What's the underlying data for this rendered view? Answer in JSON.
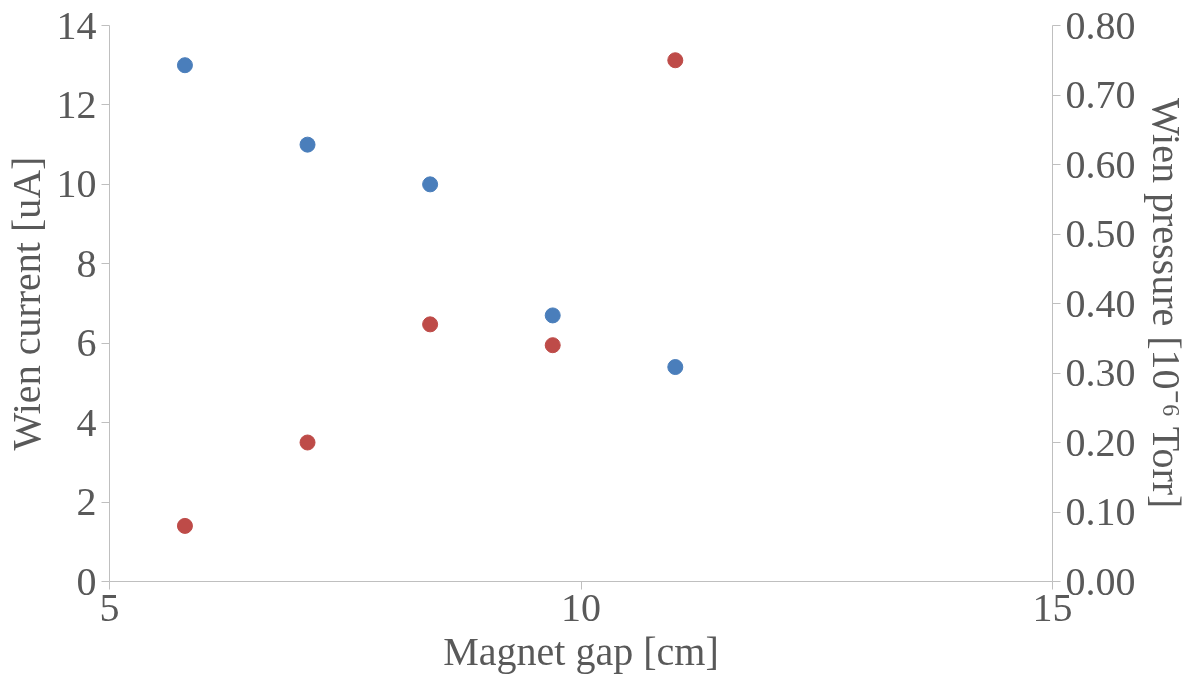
{
  "chart_data": {
    "type": "scatter",
    "xlabel": "Magnet gap [cm]",
    "ylabel": "Wien current [uA]",
    "y2label": "Wien pressure [10⁻⁶ Torr]",
    "x": [
      5.8,
      7.1,
      8.4,
      9.7,
      11.0
    ],
    "series": [
      {
        "color": "#4a7ebb",
        "values": [
          13,
          11,
          10,
          6.7,
          5.4
        ]
      },
      {
        "color": "#be4b48",
        "axis": "y2",
        "values": [
          0.08,
          0.2,
          0.37,
          0.34,
          0.75
        ]
      }
    ],
    "xlim": [
      5,
      15
    ],
    "xticks": [
      5,
      10,
      15
    ],
    "ylim": [
      0,
      14
    ],
    "yticks": [
      0,
      2,
      4,
      6,
      8,
      10,
      12,
      14
    ],
    "y2lim": [
      0,
      0.8
    ],
    "y2ticks": [
      {
        "value": 0,
        "label": "0.00"
      },
      {
        "value": 0.1,
        "label": "0.10"
      },
      {
        "value": 0.2,
        "label": "0.20"
      },
      {
        "value": 0.3,
        "label": "0.30"
      },
      {
        "value": 0.4,
        "label": "0.40"
      },
      {
        "value": 0.5,
        "label": "0.50"
      },
      {
        "value": 0.6,
        "label": "0.60"
      },
      {
        "value": 0.7,
        "label": "0.70"
      },
      {
        "value": 0.8,
        "label": "0.80"
      }
    ],
    "grid": false,
    "marker": "circle"
  }
}
